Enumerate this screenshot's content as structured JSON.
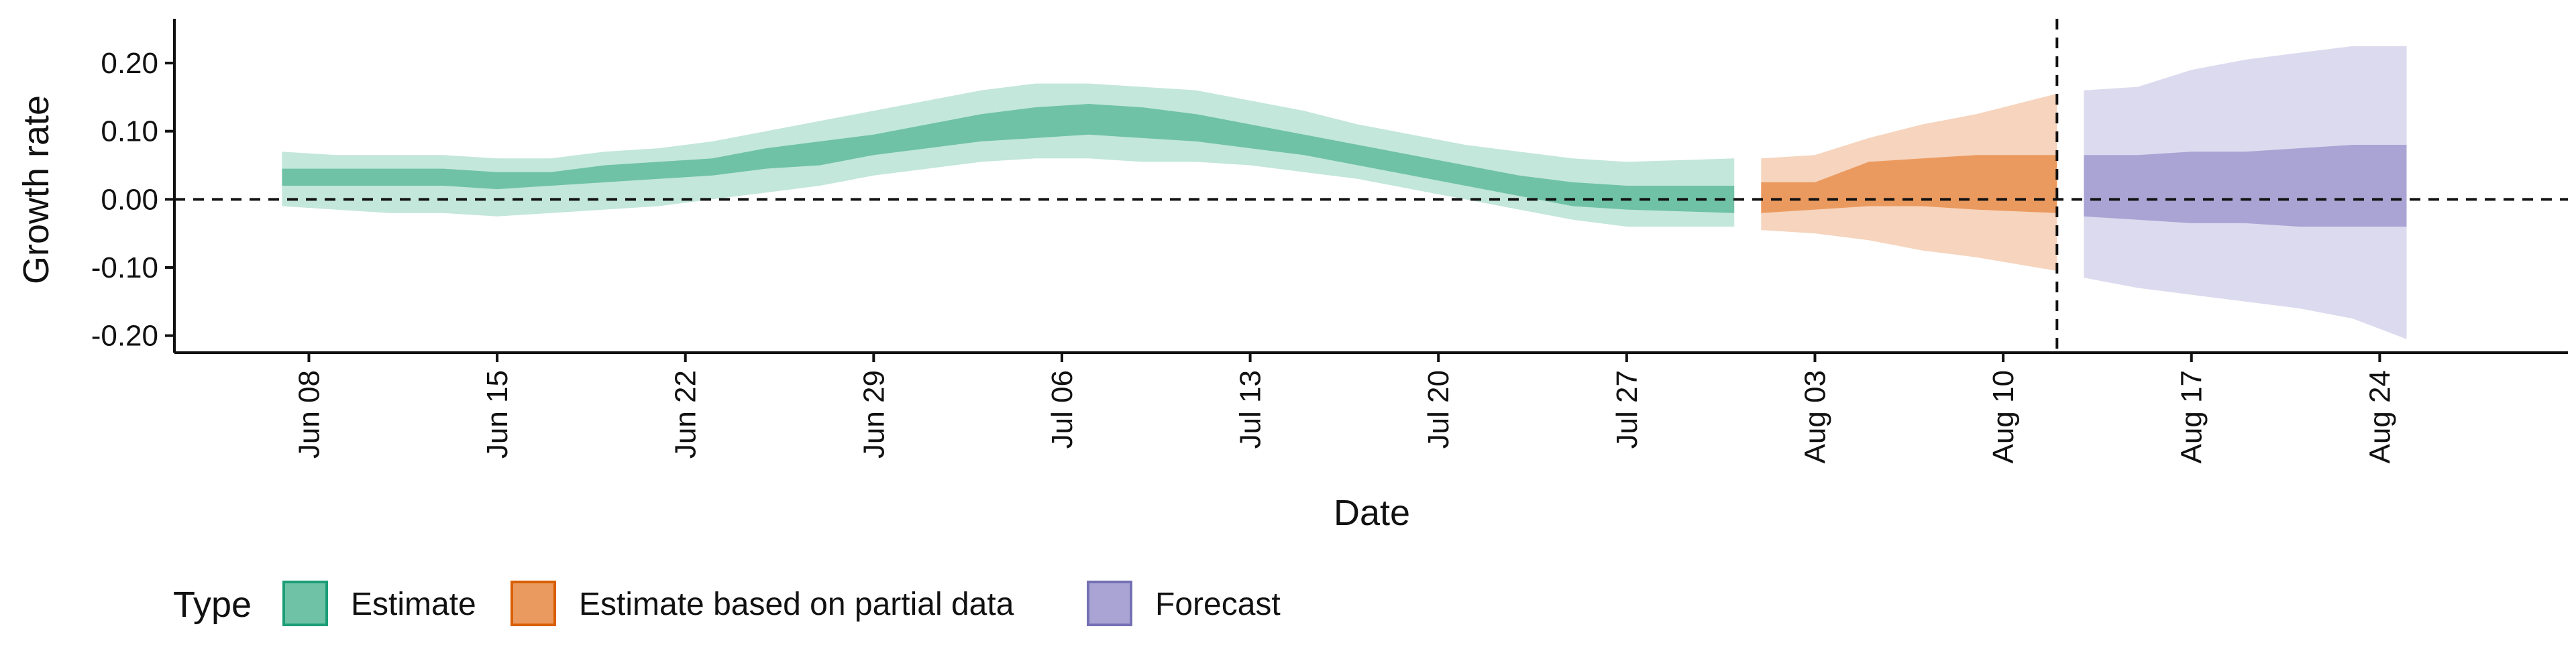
{
  "chart_data": {
    "type": "area",
    "xlabel": "Date",
    "ylabel": "Growth rate",
    "ylim": [
      -0.225,
      0.265
    ],
    "y_ticks": [
      0.2,
      0.1,
      0.0,
      -0.1,
      -0.2
    ],
    "y_tick_labels": [
      "0.20",
      "0.10",
      "0.00",
      "-0.10",
      "-0.20"
    ],
    "x_ticks": [
      "2020-06-08",
      "2020-06-15",
      "2020-06-22",
      "2020-06-29",
      "2020-07-06",
      "2020-07-13",
      "2020-07-20",
      "2020-07-27",
      "2020-08-03",
      "2020-08-10",
      "2020-08-17",
      "2020-08-24"
    ],
    "x_tick_labels": [
      "Jun 08",
      "Jun 15",
      "Jun 22",
      "Jun 29",
      "Jul 06",
      "Jul 13",
      "Jul 20",
      "Jul 27",
      "Aug 03",
      "Aug 10",
      "Aug 17",
      "Aug 24"
    ],
    "xlim": [
      "2020-06-03",
      "2020-08-31"
    ],
    "reference_lines": {
      "horizontal_y": 0.0,
      "vertical_date": "2020-08-12"
    },
    "legend": {
      "title": "Type",
      "position": "bottom",
      "entries": [
        {
          "label": "Estimate",
          "fill": "#6fc2a5",
          "border": "#1b9e77"
        },
        {
          "label": "Estimate based on partial data",
          "fill": "#eb9a5f",
          "border": "#d95f02"
        },
        {
          "label": "Forecast",
          "fill": "#aaa4d4",
          "border": "#7570b3"
        }
      ]
    },
    "series": [
      {
        "name": "Estimate",
        "outer_color": "#c3e7da",
        "inner_color": "#6fc2a5",
        "points": [
          {
            "x": "2020-06-07",
            "lower90": -0.01,
            "lower50": 0.02,
            "upper50": 0.045,
            "upper90": 0.07
          },
          {
            "x": "2020-06-09",
            "lower90": -0.015,
            "lower50": 0.02,
            "upper50": 0.045,
            "upper90": 0.065
          },
          {
            "x": "2020-06-11",
            "lower90": -0.02,
            "lower50": 0.02,
            "upper50": 0.045,
            "upper90": 0.065
          },
          {
            "x": "2020-06-13",
            "lower90": -0.02,
            "lower50": 0.02,
            "upper50": 0.045,
            "upper90": 0.065
          },
          {
            "x": "2020-06-15",
            "lower90": -0.025,
            "lower50": 0.015,
            "upper50": 0.04,
            "upper90": 0.06
          },
          {
            "x": "2020-06-17",
            "lower90": -0.02,
            "lower50": 0.02,
            "upper50": 0.04,
            "upper90": 0.06
          },
          {
            "x": "2020-06-19",
            "lower90": -0.015,
            "lower50": 0.025,
            "upper50": 0.05,
            "upper90": 0.07
          },
          {
            "x": "2020-06-21",
            "lower90": -0.01,
            "lower50": 0.03,
            "upper50": 0.055,
            "upper90": 0.075
          },
          {
            "x": "2020-06-23",
            "lower90": 0.0,
            "lower50": 0.035,
            "upper50": 0.06,
            "upper90": 0.085
          },
          {
            "x": "2020-06-25",
            "lower90": 0.01,
            "lower50": 0.045,
            "upper50": 0.075,
            "upper90": 0.1
          },
          {
            "x": "2020-06-27",
            "lower90": 0.02,
            "lower50": 0.05,
            "upper50": 0.085,
            "upper90": 0.115
          },
          {
            "x": "2020-06-29",
            "lower90": 0.035,
            "lower50": 0.065,
            "upper50": 0.095,
            "upper90": 0.13
          },
          {
            "x": "2020-07-01",
            "lower90": 0.045,
            "lower50": 0.075,
            "upper50": 0.11,
            "upper90": 0.145
          },
          {
            "x": "2020-07-03",
            "lower90": 0.055,
            "lower50": 0.085,
            "upper50": 0.125,
            "upper90": 0.16
          },
          {
            "x": "2020-07-05",
            "lower90": 0.06,
            "lower50": 0.09,
            "upper50": 0.135,
            "upper90": 0.17
          },
          {
            "x": "2020-07-07",
            "lower90": 0.06,
            "lower50": 0.095,
            "upper50": 0.14,
            "upper90": 0.17
          },
          {
            "x": "2020-07-09",
            "lower90": 0.055,
            "lower50": 0.09,
            "upper50": 0.135,
            "upper90": 0.165
          },
          {
            "x": "2020-07-11",
            "lower90": 0.055,
            "lower50": 0.085,
            "upper50": 0.125,
            "upper90": 0.16
          },
          {
            "x": "2020-07-13",
            "lower90": 0.05,
            "lower50": 0.075,
            "upper50": 0.11,
            "upper90": 0.145
          },
          {
            "x": "2020-07-15",
            "lower90": 0.04,
            "lower50": 0.065,
            "upper50": 0.095,
            "upper90": 0.13
          },
          {
            "x": "2020-07-17",
            "lower90": 0.03,
            "lower50": 0.05,
            "upper50": 0.08,
            "upper90": 0.11
          },
          {
            "x": "2020-07-19",
            "lower90": 0.015,
            "lower50": 0.035,
            "upper50": 0.065,
            "upper90": 0.095
          },
          {
            "x": "2020-07-21",
            "lower90": 0.0,
            "lower50": 0.02,
            "upper50": 0.05,
            "upper90": 0.08
          },
          {
            "x": "2020-07-23",
            "lower90": -0.015,
            "lower50": 0.005,
            "upper50": 0.035,
            "upper90": 0.07
          },
          {
            "x": "2020-07-25",
            "lower90": -0.03,
            "lower50": -0.01,
            "upper50": 0.025,
            "upper90": 0.06
          },
          {
            "x": "2020-07-27",
            "lower90": -0.04,
            "lower50": -0.015,
            "upper50": 0.02,
            "upper90": 0.055
          },
          {
            "x": "2020-07-31",
            "lower90": -0.04,
            "lower50": -0.02,
            "upper50": 0.02,
            "upper90": 0.06
          }
        ]
      },
      {
        "name": "Estimate based on partial data",
        "outer_color": "#f6d4bd",
        "inner_color": "#eb9a5f",
        "points": [
          {
            "x": "2020-08-01",
            "lower90": -0.045,
            "lower50": -0.02,
            "upper50": 0.025,
            "upper90": 0.06
          },
          {
            "x": "2020-08-03",
            "lower90": -0.05,
            "lower50": -0.015,
            "upper50": 0.025,
            "upper90": 0.065
          },
          {
            "x": "2020-08-05",
            "lower90": -0.06,
            "lower50": -0.01,
            "upper50": 0.055,
            "upper90": 0.09
          },
          {
            "x": "2020-08-07",
            "lower90": -0.075,
            "lower50": -0.01,
            "upper50": 0.06,
            "upper90": 0.11
          },
          {
            "x": "2020-08-09",
            "lower90": -0.085,
            "lower50": -0.015,
            "upper50": 0.065,
            "upper90": 0.125
          },
          {
            "x": "2020-08-12",
            "lower90": -0.105,
            "lower50": -0.02,
            "upper50": 0.065,
            "upper90": 0.155
          }
        ]
      },
      {
        "name": "Forecast",
        "outer_color": "#dcdaee",
        "inner_color": "#aaa4d4",
        "points": [
          {
            "x": "2020-08-13",
            "lower90": -0.115,
            "lower50": -0.025,
            "upper50": 0.065,
            "upper90": 0.16
          },
          {
            "x": "2020-08-15",
            "lower90": -0.13,
            "lower50": -0.03,
            "upper50": 0.065,
            "upper90": 0.165
          },
          {
            "x": "2020-08-17",
            "lower90": -0.14,
            "lower50": -0.035,
            "upper50": 0.07,
            "upper90": 0.19
          },
          {
            "x": "2020-08-19",
            "lower90": -0.15,
            "lower50": -0.035,
            "upper50": 0.07,
            "upper90": 0.205
          },
          {
            "x": "2020-08-21",
            "lower90": -0.16,
            "lower50": -0.04,
            "upper50": 0.075,
            "upper90": 0.215
          },
          {
            "x": "2020-08-23",
            "lower90": -0.175,
            "lower50": -0.04,
            "upper50": 0.08,
            "upper90": 0.225
          },
          {
            "x": "2020-08-25",
            "lower90": -0.205,
            "lower50": -0.04,
            "upper50": 0.08,
            "upper90": 0.225
          }
        ]
      }
    ]
  }
}
